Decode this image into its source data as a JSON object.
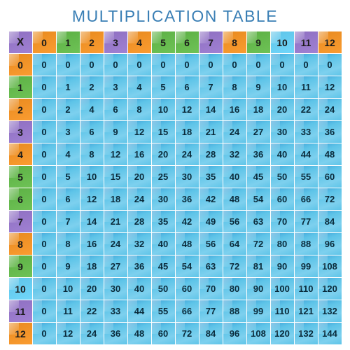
{
  "title": {
    "text": "MULTIPLICATION TABLE",
    "color": "#3a7fb5",
    "fontsize": 23
  },
  "table": {
    "type": "table",
    "corner_label": "X",
    "range_start": 0,
    "range_end": 12,
    "col_headers": [
      0,
      1,
      2,
      3,
      4,
      5,
      6,
      7,
      8,
      9,
      10,
      11,
      12
    ],
    "row_headers": [
      0,
      1,
      2,
      3,
      4,
      5,
      6,
      7,
      8,
      9,
      10,
      11,
      12
    ],
    "body_cell_bg": "#5ec4e8",
    "body_text_color": "#0a2a3a",
    "header_colors": [
      "#8e6fc1",
      "#e88a1f",
      "#5cb044",
      "#e88a1f",
      "#8e6fc1",
      "#e88a1f",
      "#5cb044",
      "#5cb044",
      "#8e6fc1",
      "#e88a1f",
      "#5cb044",
      "#5ec4e8",
      "#8e6fc1",
      "#e88a1f"
    ],
    "rows": [
      [
        0,
        0,
        0,
        0,
        0,
        0,
        0,
        0,
        0,
        0,
        0,
        0,
        0
      ],
      [
        0,
        1,
        2,
        3,
        4,
        5,
        6,
        7,
        8,
        9,
        10,
        11,
        12
      ],
      [
        0,
        2,
        4,
        6,
        8,
        10,
        12,
        14,
        16,
        18,
        20,
        22,
        24
      ],
      [
        0,
        3,
        6,
        9,
        12,
        15,
        18,
        21,
        24,
        27,
        30,
        33,
        36
      ],
      [
        0,
        4,
        8,
        12,
        16,
        20,
        24,
        28,
        32,
        36,
        40,
        44,
        48
      ],
      [
        0,
        5,
        10,
        15,
        20,
        25,
        30,
        35,
        40,
        45,
        50,
        55,
        60
      ],
      [
        0,
        6,
        12,
        18,
        24,
        30,
        36,
        42,
        48,
        54,
        60,
        66,
        72
      ],
      [
        0,
        7,
        14,
        21,
        28,
        35,
        42,
        49,
        56,
        63,
        70,
        77,
        84
      ],
      [
        0,
        8,
        16,
        24,
        32,
        40,
        48,
        56,
        64,
        72,
        80,
        88,
        96
      ],
      [
        0,
        9,
        18,
        27,
        36,
        45,
        54,
        63,
        72,
        81,
        90,
        99,
        108
      ],
      [
        0,
        10,
        20,
        30,
        40,
        50,
        60,
        70,
        80,
        90,
        100,
        110,
        120
      ],
      [
        0,
        11,
        22,
        33,
        44,
        55,
        66,
        77,
        88,
        99,
        110,
        121,
        132
      ],
      [
        0,
        12,
        24,
        36,
        48,
        60,
        72,
        84,
        96,
        108,
        120,
        132,
        144
      ]
    ]
  }
}
